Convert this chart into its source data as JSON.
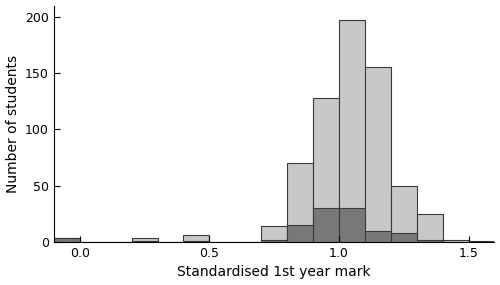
{
  "bin_edges": [
    -0.1,
    0.0,
    0.1,
    0.2,
    0.3,
    0.4,
    0.5,
    0.6,
    0.7,
    0.8,
    0.9,
    1.0,
    1.1,
    1.2,
    1.3,
    1.4,
    1.5,
    1.6
  ],
  "light_counts": [
    4,
    0,
    0,
    4,
    0,
    6,
    0,
    0,
    14,
    70,
    128,
    197,
    155,
    50,
    25,
    2,
    1
  ],
  "dark_counts": [
    4,
    0,
    0,
    1,
    0,
    1,
    0,
    0,
    2,
    15,
    30,
    30,
    10,
    8,
    2,
    0,
    0
  ],
  "light_color": "#c8c8c8",
  "dark_color": "#787878",
  "edge_color": "#3a3a3a",
  "xlabel": "Standardised 1st year mark",
  "ylabel": "Number of students",
  "xlim": [
    -0.1,
    1.6
  ],
  "ylim": [
    0,
    210
  ],
  "xticks": [
    0.0,
    0.5,
    1.0,
    1.5
  ],
  "yticks": [
    0,
    50,
    100,
    150,
    200
  ],
  "bin_width": 0.1,
  "linewidth": 0.8
}
